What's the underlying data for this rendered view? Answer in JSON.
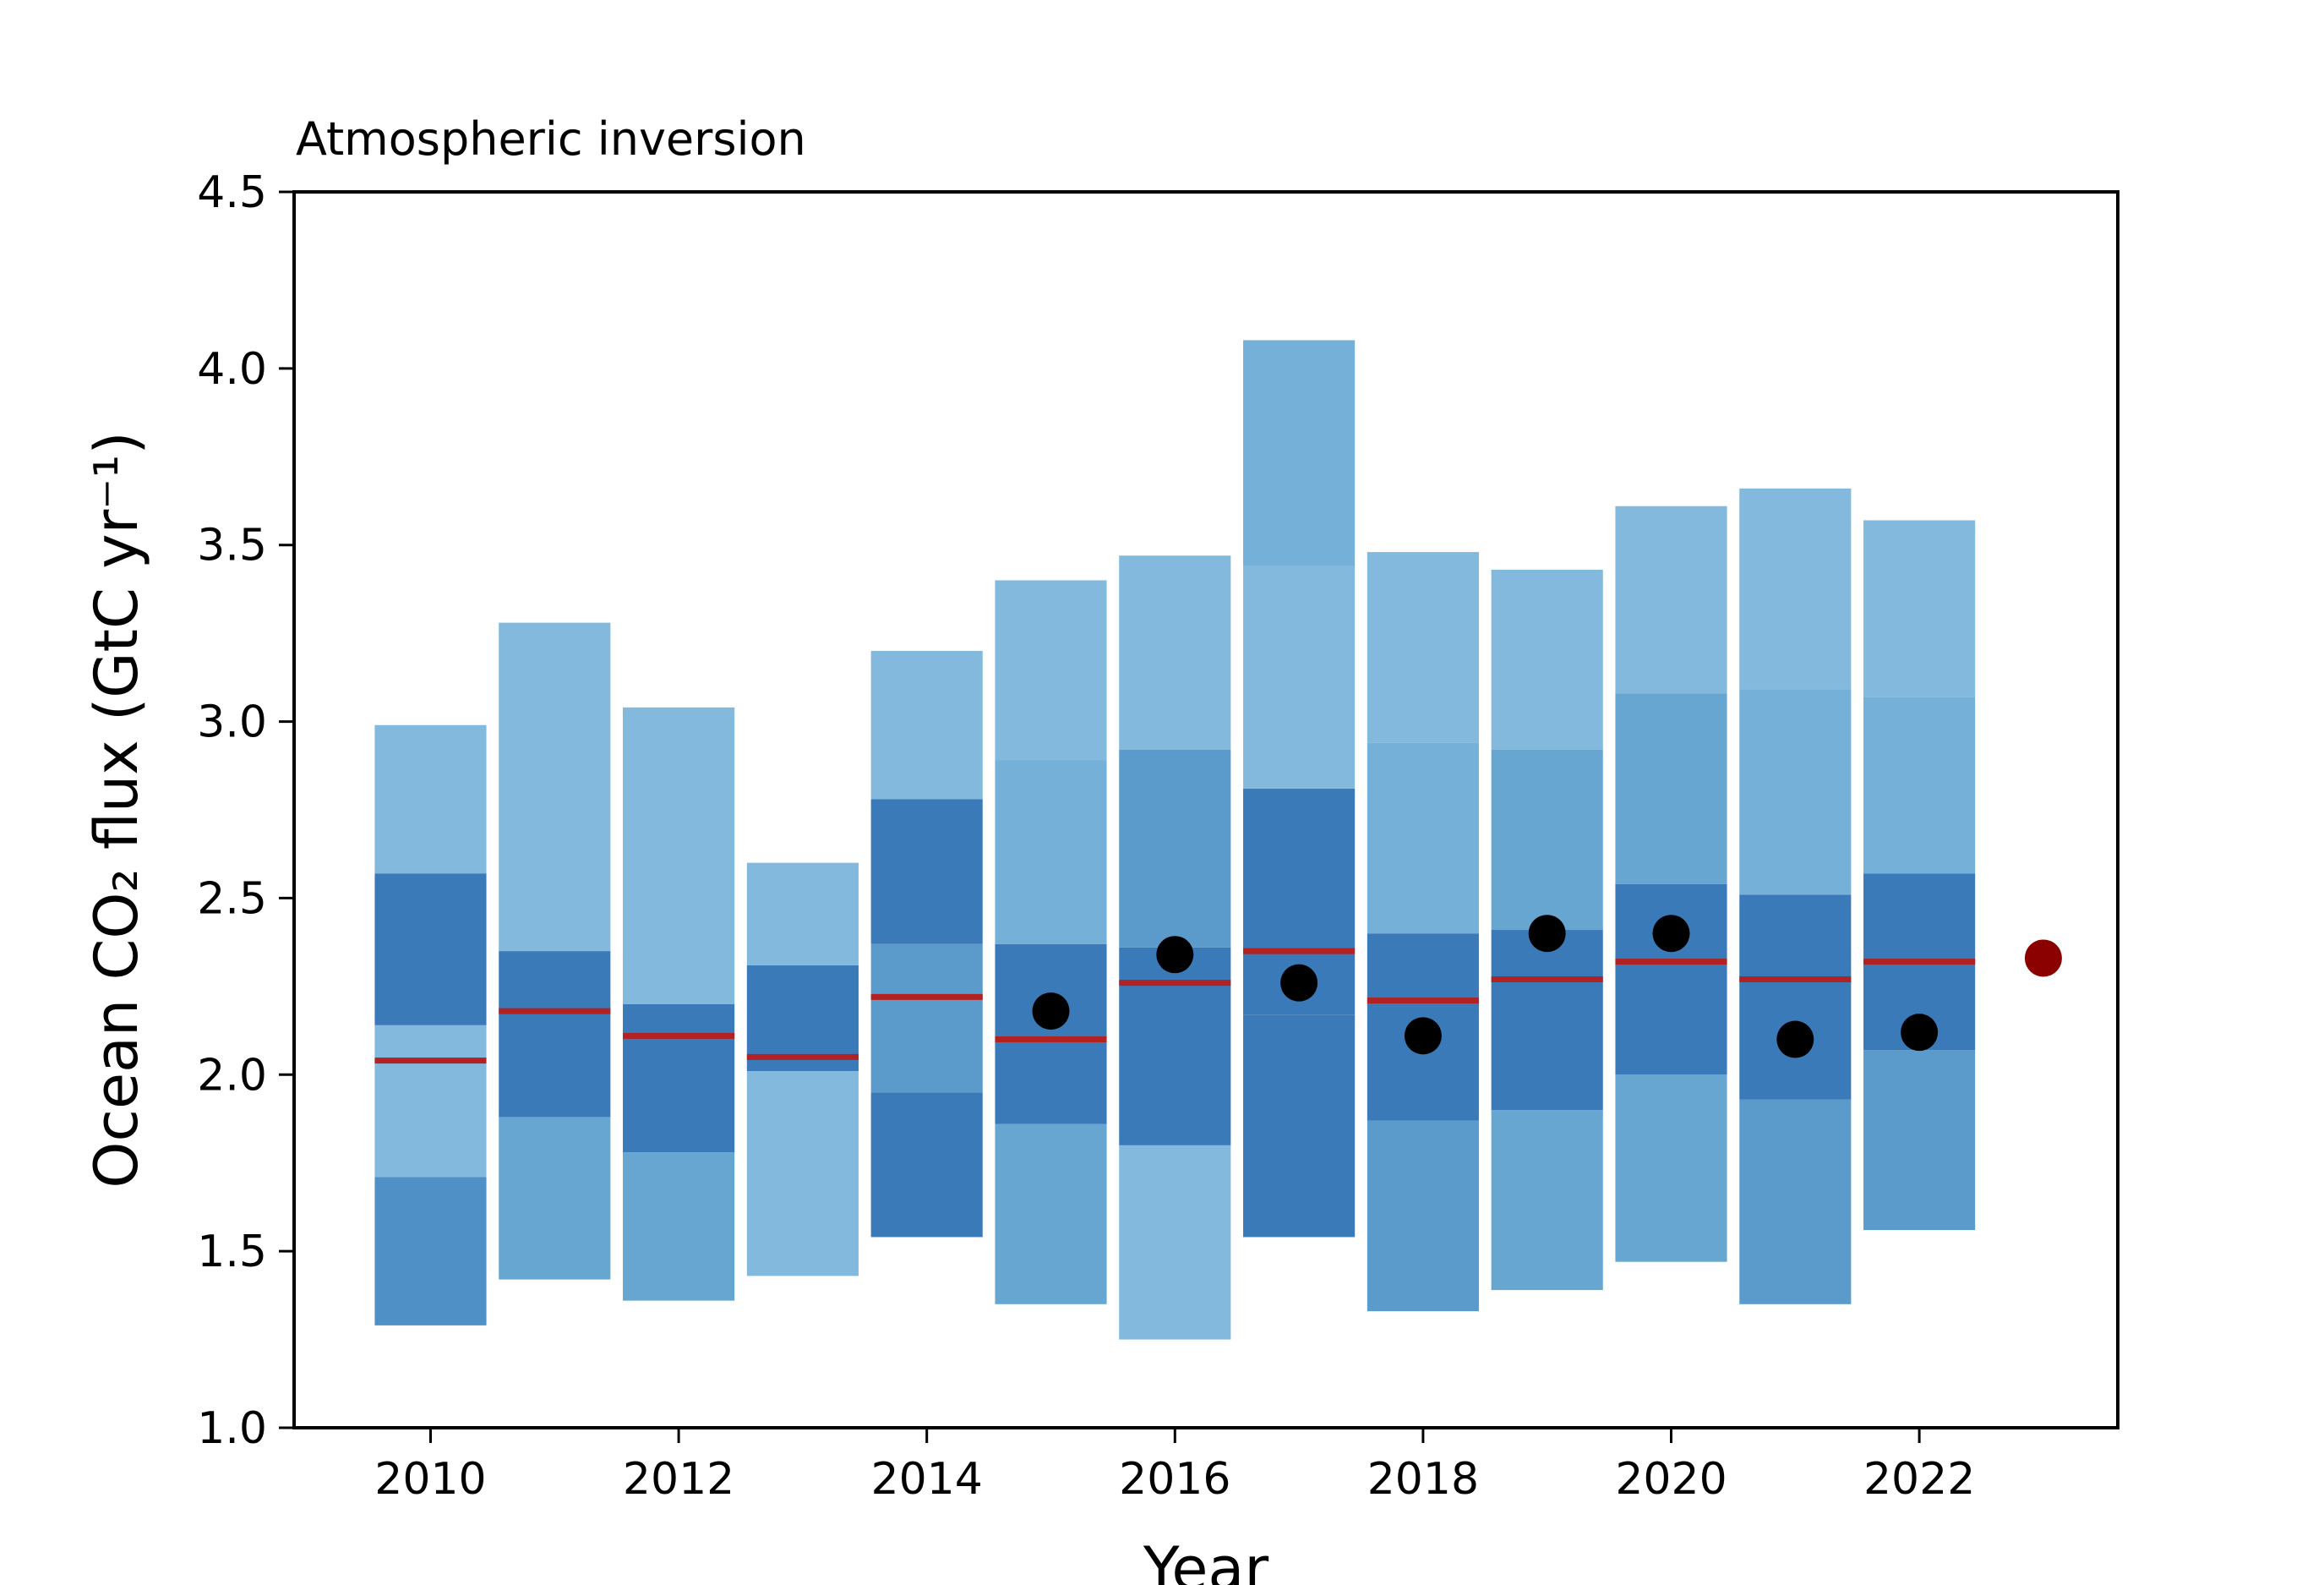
{
  "chart_data": {
    "type": "bar",
    "title": "Atmospheric inversion",
    "xlabel": "Year",
    "ylabel": "Ocean CO₂ flux (GtC yr⁻¹)",
    "xlim": [
      2008.9,
      2023.6
    ],
    "ylim": [
      1.0,
      4.5
    ],
    "xticks": [
      "2010",
      "2012",
      "2014",
      "2016",
      "2018",
      "2020",
      "2022"
    ],
    "yticks": [
      "1.0",
      "1.5",
      "2.0",
      "2.5",
      "3.0",
      "3.5",
      "4.0",
      "4.5"
    ],
    "grid": false,
    "bar_width": 0.9,
    "series": [
      {
        "year": 2010,
        "segments": [
          {
            "from": 1.29,
            "to": 1.71,
            "color": "#4f90c6"
          },
          {
            "from": 1.71,
            "to": 2.14,
            "color": "#83b9dc"
          },
          {
            "from": 2.14,
            "to": 2.57,
            "color": "#3b7ab8"
          },
          {
            "from": 2.57,
            "to": 2.99,
            "color": "#83b9dc"
          }
        ],
        "median": 2.04,
        "point": null
      },
      {
        "year": 2011,
        "segments": [
          {
            "from": 1.42,
            "to": 1.88,
            "color": "#67a6d1"
          },
          {
            "from": 1.88,
            "to": 2.35,
            "color": "#3b7ab8"
          },
          {
            "from": 2.35,
            "to": 3.28,
            "color": "#83b9dc"
          }
        ],
        "median": 2.18,
        "point": null
      },
      {
        "year": 2012,
        "segments": [
          {
            "from": 1.36,
            "to": 1.78,
            "color": "#67a6d1"
          },
          {
            "from": 1.78,
            "to": 2.2,
            "color": "#3b7ab8"
          },
          {
            "from": 2.2,
            "to": 3.04,
            "color": "#83b9dc"
          }
        ],
        "median": 2.11,
        "point": null
      },
      {
        "year": 2013,
        "segments": [
          {
            "from": 1.43,
            "to": 2.01,
            "color": "#83b9dc"
          },
          {
            "from": 2.01,
            "to": 2.31,
            "color": "#3b7ab8"
          },
          {
            "from": 2.31,
            "to": 2.6,
            "color": "#83b9dc"
          }
        ],
        "median": 2.05,
        "point": null
      },
      {
        "year": 2014,
        "segments": [
          {
            "from": 1.54,
            "to": 1.95,
            "color": "#3b7ab8"
          },
          {
            "from": 1.95,
            "to": 2.37,
            "color": "#5b9bcb"
          },
          {
            "from": 2.37,
            "to": 2.78,
            "color": "#3b7ab8"
          },
          {
            "from": 2.78,
            "to": 3.2,
            "color": "#83b9dc"
          }
        ],
        "median": 2.22,
        "point": null
      },
      {
        "year": 2015,
        "segments": [
          {
            "from": 1.35,
            "to": 1.86,
            "color": "#67a6d1"
          },
          {
            "from": 1.86,
            "to": 2.37,
            "color": "#3b7ab8"
          },
          {
            "from": 2.37,
            "to": 2.89,
            "color": "#74b0d8"
          },
          {
            "from": 2.89,
            "to": 3.4,
            "color": "#83b9dc"
          }
        ],
        "median": 2.1,
        "point": 2.18
      },
      {
        "year": 2016,
        "segments": [
          {
            "from": 1.25,
            "to": 1.8,
            "color": "#83b9dc"
          },
          {
            "from": 1.8,
            "to": 2.36,
            "color": "#3b7ab8"
          },
          {
            "from": 2.36,
            "to": 2.92,
            "color": "#5b9bcb"
          },
          {
            "from": 2.92,
            "to": 3.47,
            "color": "#83b9dc"
          }
        ],
        "median": 2.26,
        "point": 2.34
      },
      {
        "year": 2017,
        "segments": [
          {
            "from": 1.54,
            "to": 2.17,
            "color": "#3b7ab8"
          },
          {
            "from": 2.17,
            "to": 2.81,
            "color": "#3b7ab8"
          },
          {
            "from": 2.81,
            "to": 3.44,
            "color": "#83b9dc"
          },
          {
            "from": 3.44,
            "to": 4.08,
            "color": "#74b0d8"
          }
        ],
        "median": 2.35,
        "point": 2.26
      },
      {
        "year": 2018,
        "segments": [
          {
            "from": 1.33,
            "to": 1.87,
            "color": "#5b9bcb"
          },
          {
            "from": 1.87,
            "to": 2.4,
            "color": "#3b7ab8"
          },
          {
            "from": 2.4,
            "to": 2.94,
            "color": "#74b0d8"
          },
          {
            "from": 2.94,
            "to": 3.48,
            "color": "#83b9dc"
          }
        ],
        "median": 2.21,
        "point": 2.11
      },
      {
        "year": 2019,
        "segments": [
          {
            "from": 1.39,
            "to": 1.9,
            "color": "#67a6d1"
          },
          {
            "from": 1.9,
            "to": 2.41,
            "color": "#3b7ab8"
          },
          {
            "from": 2.41,
            "to": 2.92,
            "color": "#67a6d1"
          },
          {
            "from": 2.92,
            "to": 3.43,
            "color": "#83b9dc"
          }
        ],
        "median": 2.27,
        "point": 2.4
      },
      {
        "year": 2020,
        "segments": [
          {
            "from": 1.47,
            "to": 2.0,
            "color": "#67a6d1"
          },
          {
            "from": 2.0,
            "to": 2.54,
            "color": "#3b7ab8"
          },
          {
            "from": 2.54,
            "to": 3.08,
            "color": "#67a6d1"
          },
          {
            "from": 3.08,
            "to": 3.61,
            "color": "#83b9dc"
          }
        ],
        "median": 2.32,
        "point": 2.4
      },
      {
        "year": 2021,
        "segments": [
          {
            "from": 1.35,
            "to": 1.93,
            "color": "#5b9bcb"
          },
          {
            "from": 1.93,
            "to": 2.51,
            "color": "#3b7ab8"
          },
          {
            "from": 2.51,
            "to": 3.09,
            "color": "#74b0d8"
          },
          {
            "from": 3.09,
            "to": 3.66,
            "color": "#83b9dc"
          }
        ],
        "median": 2.27,
        "point": 2.1
      },
      {
        "year": 2022,
        "segments": [
          {
            "from": 1.56,
            "to": 2.07,
            "color": "#5b9bcb"
          },
          {
            "from": 2.07,
            "to": 2.57,
            "color": "#3b7ab8"
          },
          {
            "from": 2.57,
            "to": 3.07,
            "color": "#74b0d8"
          },
          {
            "from": 3.07,
            "to": 3.57,
            "color": "#83b9dc"
          }
        ],
        "median": 2.32,
        "point": 2.12
      }
    ],
    "extra_points": [
      {
        "year": 2023,
        "value": 2.33,
        "color": "#8b0000"
      }
    ],
    "colors": {
      "median_line": "#b22222",
      "point": "#000000",
      "axis": "#000000"
    }
  }
}
